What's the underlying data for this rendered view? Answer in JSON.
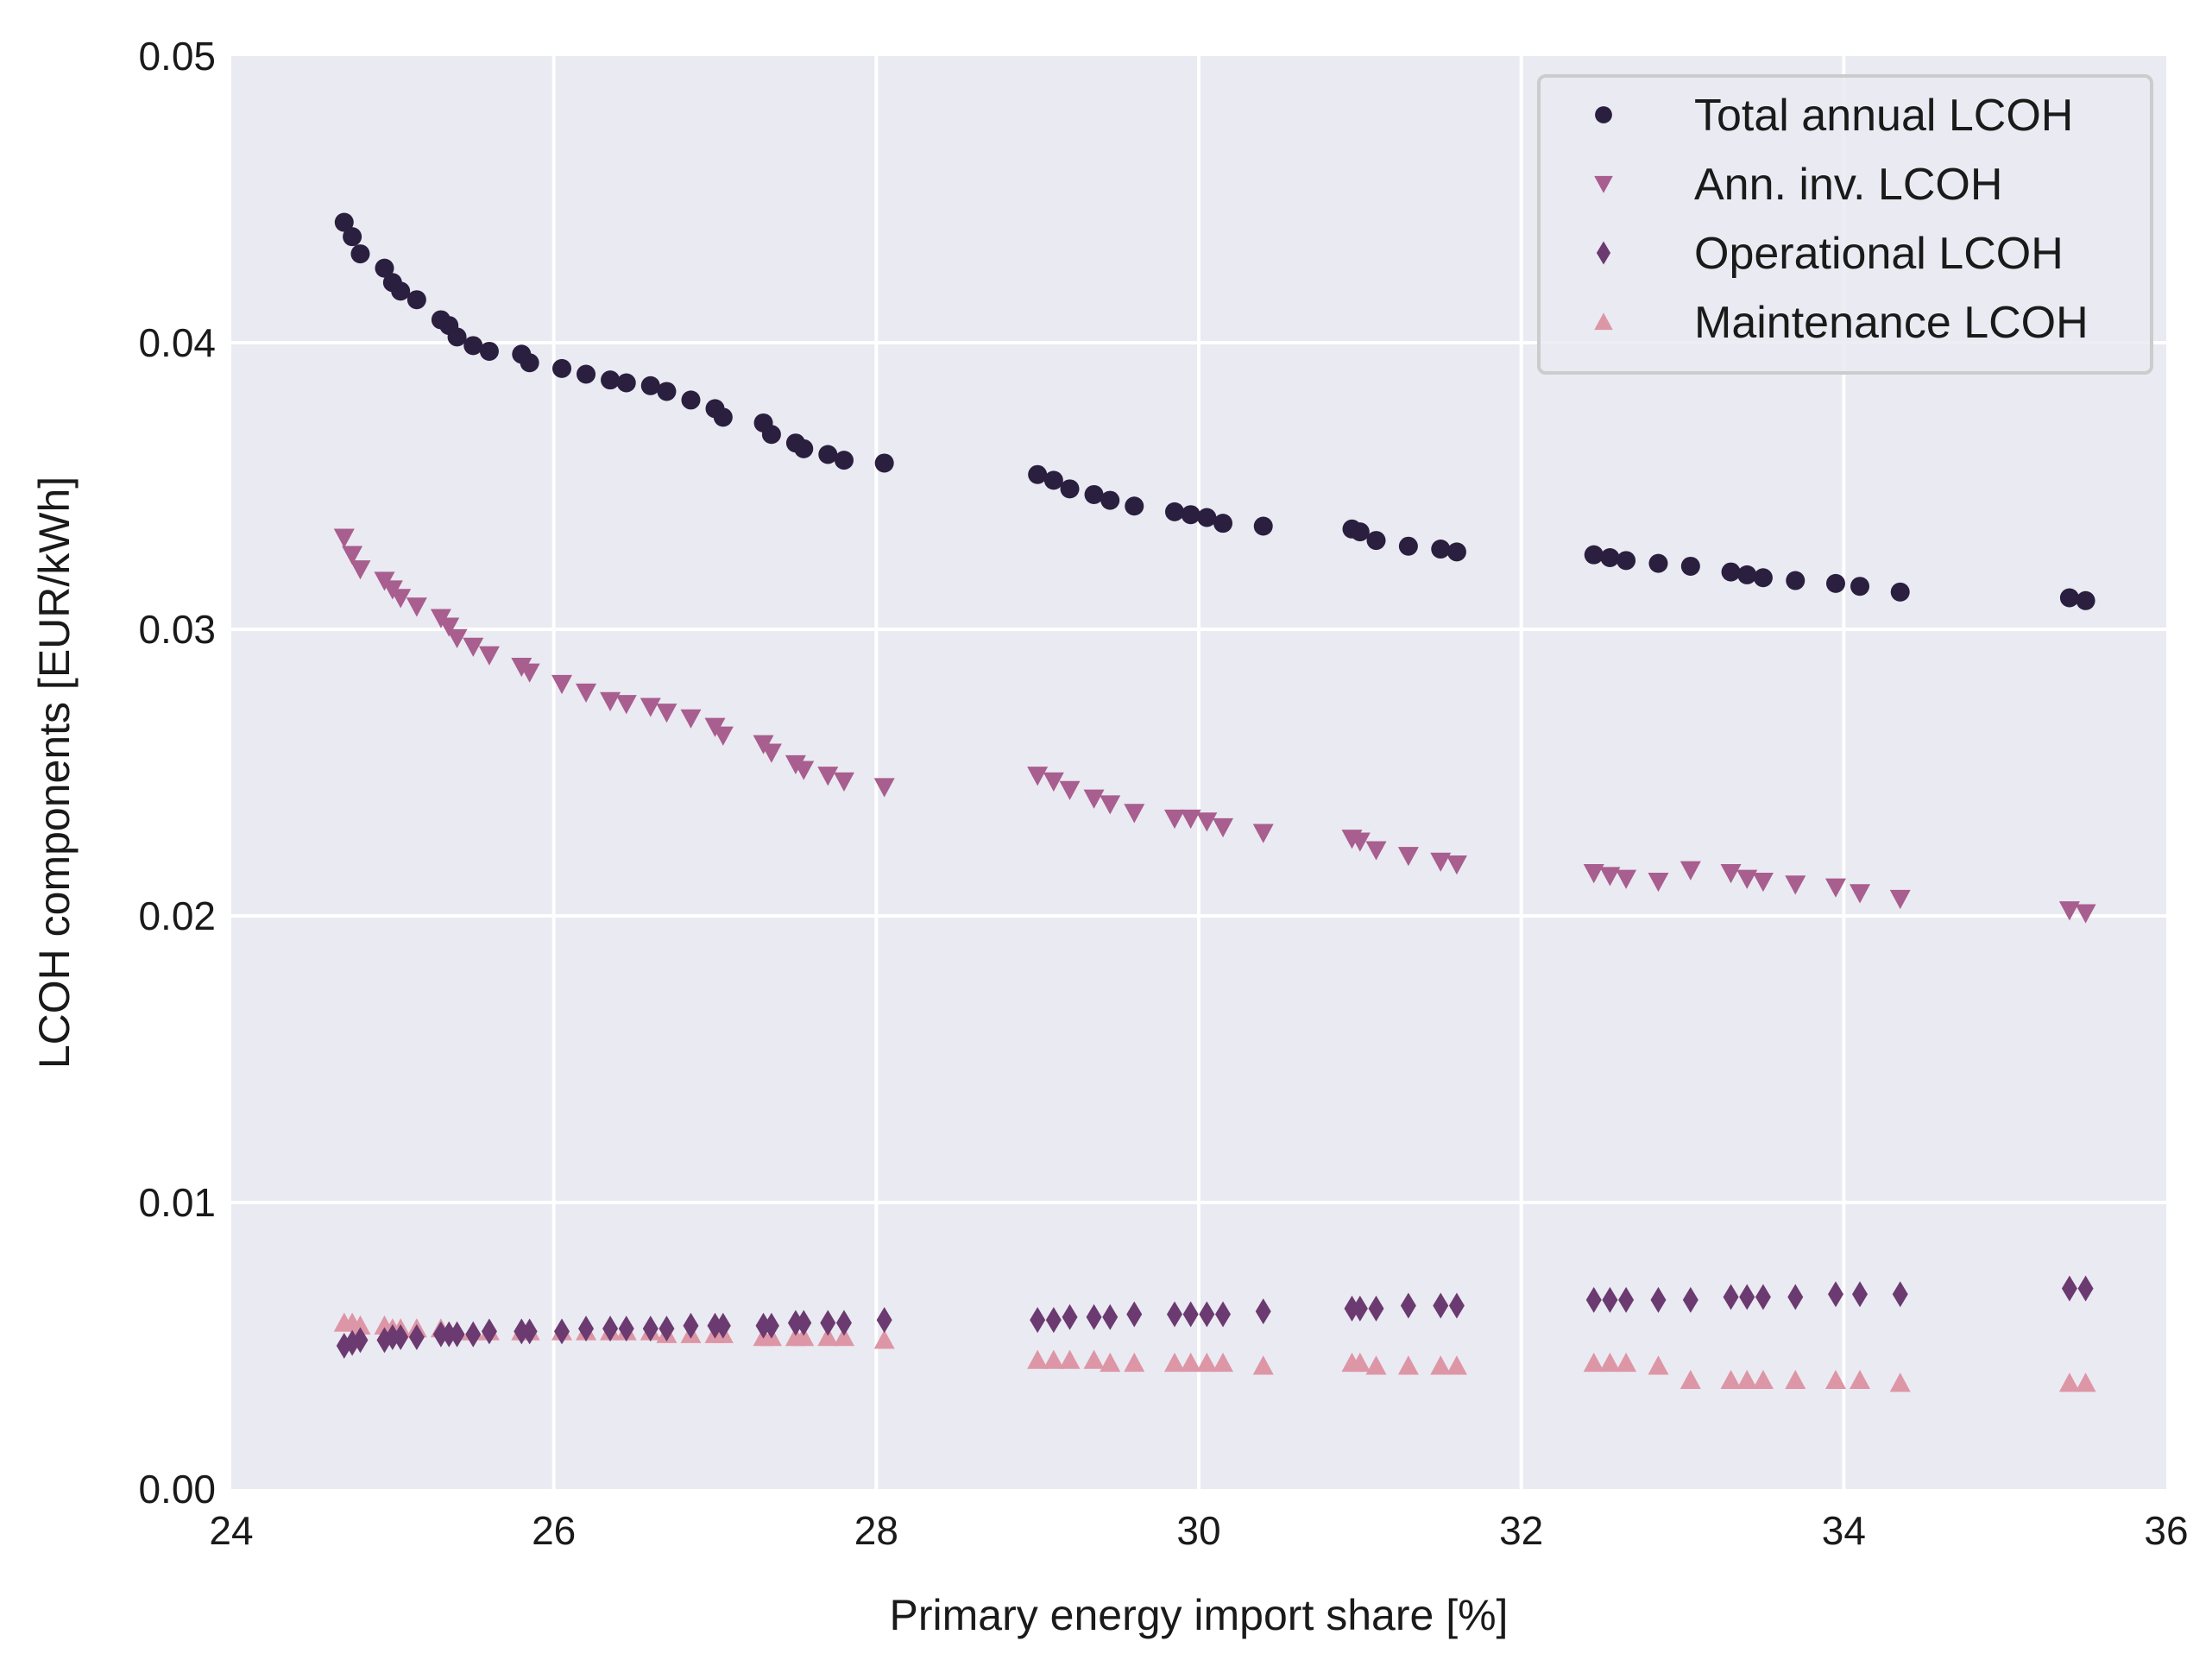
{
  "chart_data": {
    "type": "scatter",
    "title": "",
    "xlabel": "Primary energy import share [%]",
    "ylabel": "LCOH components [EUR/kWh]",
    "xlim": [
      24,
      36
    ],
    "ylim": [
      0,
      0.05
    ],
    "xticks": [
      24,
      26,
      28,
      30,
      32,
      34,
      36
    ],
    "xtick_labels": [
      "24",
      "26",
      "28",
      "30",
      "32",
      "34",
      "36"
    ],
    "yticks": [
      0,
      0.01,
      0.02,
      0.03,
      0.04,
      0.05
    ],
    "ytick_labels": [
      "0.00",
      "0.01",
      "0.02",
      "0.03",
      "0.04",
      "0.05"
    ],
    "grid": true,
    "legend_position": "top-right",
    "colors": {
      "background": "#eaeaf2",
      "grid": "#ffffff"
    },
    "x": [
      24.7,
      24.75,
      24.8,
      24.95,
      25.0,
      25.05,
      25.15,
      25.3,
      25.35,
      25.4,
      25.5,
      25.6,
      25.8,
      25.85,
      26.05,
      26.2,
      26.35,
      26.45,
      26.6,
      26.7,
      26.85,
      27.0,
      27.05,
      27.3,
      27.35,
      27.5,
      27.55,
      27.7,
      27.8,
      28.05,
      29.0,
      29.1,
      29.2,
      29.35,
      29.45,
      29.6,
      29.85,
      29.95,
      30.05,
      30.15,
      30.4,
      30.95,
      31.0,
      31.1,
      31.3,
      31.5,
      31.6,
      32.45,
      32.55,
      32.65,
      32.85,
      33.05,
      33.3,
      33.4,
      33.5,
      33.7,
      33.95,
      34.1,
      34.35,
      35.4,
      35.5
    ],
    "series": [
      {
        "name": "Total annual LCOH",
        "marker": "circle",
        "color": "#2a1f3f",
        "values": [
          0.0442,
          0.0437,
          0.0431,
          0.0426,
          0.0421,
          0.0418,
          0.0415,
          0.0408,
          0.0406,
          0.0402,
          0.0399,
          0.0397,
          0.0396,
          0.0393,
          0.0391,
          0.0389,
          0.0387,
          0.0386,
          0.0385,
          0.0383,
          0.038,
          0.0377,
          0.0374,
          0.0372,
          0.0368,
          0.0365,
          0.0363,
          0.0361,
          0.0359,
          0.0358,
          0.0354,
          0.0352,
          0.0349,
          0.0347,
          0.0345,
          0.0343,
          0.0341,
          0.034,
          0.0339,
          0.0337,
          0.0336,
          0.0335,
          0.0334,
          0.0331,
          0.0329,
          0.0328,
          0.0327,
          0.0326,
          0.0325,
          0.0324,
          0.0323,
          0.0322,
          0.032,
          0.0319,
          0.0318,
          0.0317,
          0.0316,
          0.0315,
          0.0313,
          0.0311,
          0.031
        ]
      },
      {
        "name": "Ann. inv. LCOH",
        "marker": "triangle-down",
        "color": "#a85e8e",
        "values": [
          0.0332,
          0.0326,
          0.0321,
          0.0317,
          0.0314,
          0.0311,
          0.0308,
          0.0304,
          0.0301,
          0.0297,
          0.0294,
          0.0291,
          0.0287,
          0.0285,
          0.0281,
          0.0278,
          0.0275,
          0.0274,
          0.0273,
          0.0271,
          0.0269,
          0.0266,
          0.0263,
          0.026,
          0.0257,
          0.0253,
          0.0251,
          0.0249,
          0.0247,
          0.0245,
          0.0249,
          0.0247,
          0.0244,
          0.0241,
          0.0239,
          0.0236,
          0.0234,
          0.0234,
          0.0233,
          0.0231,
          0.0229,
          0.0227,
          0.0226,
          0.0223,
          0.0221,
          0.0219,
          0.0218,
          0.0215,
          0.0214,
          0.0213,
          0.0212,
          0.0216,
          0.0215,
          0.0213,
          0.0212,
          0.0211,
          0.021,
          0.0208,
          0.0206,
          0.0202,
          0.0201
        ]
      },
      {
        "name": "Operational LCOH",
        "marker": "diamond",
        "color": "#6b3a70",
        "values": [
          0.005,
          0.0051,
          0.0052,
          0.0052,
          0.0053,
          0.0053,
          0.0053,
          0.0054,
          0.0054,
          0.0054,
          0.0054,
          0.0055,
          0.0055,
          0.0055,
          0.0055,
          0.0056,
          0.0056,
          0.0056,
          0.0056,
          0.0056,
          0.0057,
          0.0057,
          0.0057,
          0.0057,
          0.0057,
          0.0058,
          0.0058,
          0.0058,
          0.0058,
          0.0059,
          0.0059,
          0.0059,
          0.006,
          0.006,
          0.006,
          0.0061,
          0.0061,
          0.0061,
          0.0061,
          0.0061,
          0.0062,
          0.0063,
          0.0063,
          0.0063,
          0.0064,
          0.0064,
          0.0064,
          0.0066,
          0.0066,
          0.0066,
          0.0066,
          0.0066,
          0.0067,
          0.0067,
          0.0067,
          0.0067,
          0.0068,
          0.0068,
          0.0068,
          0.007,
          0.007
        ]
      },
      {
        "name": "Maintenance LCOH",
        "marker": "triangle-up",
        "color": "#dd96a6",
        "values": [
          0.0058,
          0.0058,
          0.0057,
          0.0057,
          0.0056,
          0.0056,
          0.0056,
          0.0056,
          0.0055,
          0.0055,
          0.0055,
          0.0055,
          0.0055,
          0.0055,
          0.0055,
          0.0055,
          0.0055,
          0.0055,
          0.0055,
          0.0054,
          0.0054,
          0.0054,
          0.0054,
          0.0053,
          0.0053,
          0.0053,
          0.0053,
          0.0053,
          0.0053,
          0.0052,
          0.0045,
          0.0045,
          0.0045,
          0.0045,
          0.0044,
          0.0044,
          0.0044,
          0.0044,
          0.0044,
          0.0044,
          0.0043,
          0.0044,
          0.0044,
          0.0043,
          0.0043,
          0.0043,
          0.0043,
          0.0044,
          0.0044,
          0.0044,
          0.0043,
          0.0038,
          0.0038,
          0.0038,
          0.0038,
          0.0038,
          0.0038,
          0.0038,
          0.0037,
          0.0037,
          0.0037
        ]
      }
    ]
  }
}
